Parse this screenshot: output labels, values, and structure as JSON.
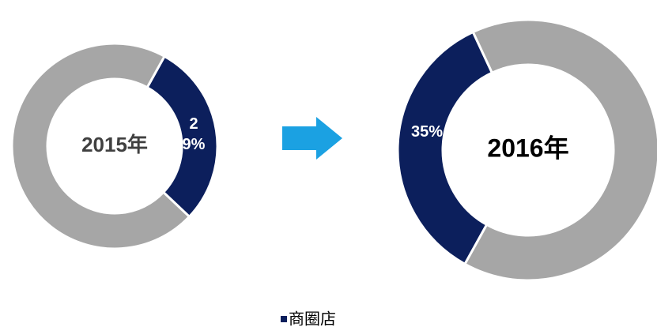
{
  "chart_data": [
    {
      "type": "donut",
      "center_label": "2015年",
      "categories": [
        "商圈店",
        null
      ],
      "values": [
        29,
        71
      ],
      "value_labels": [
        "29%",
        null
      ],
      "colors": [
        "#0c1f5c",
        "#a6a6a6"
      ]
    },
    {
      "type": "donut",
      "center_label": "2016年",
      "categories": [
        "商圈店",
        null
      ],
      "values": [
        35,
        65
      ],
      "value_labels": [
        "35%",
        null
      ],
      "colors": [
        "#0c1f5c",
        "#a6a6a6"
      ]
    }
  ]
}
